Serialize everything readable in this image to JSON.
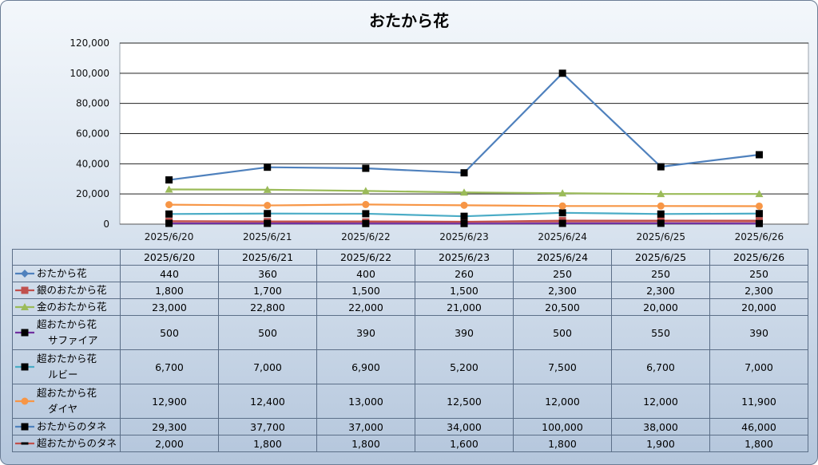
{
  "chart_data": {
    "type": "line",
    "title": "おたから花",
    "categories": [
      "2025/6/20",
      "2025/6/21",
      "2025/6/22",
      "2025/6/23",
      "2025/6/24",
      "2025/6/25",
      "2025/6/26"
    ],
    "y_ticks": [
      "0",
      "20,000",
      "40,000",
      "60,000",
      "80,000",
      "100,000",
      "120,000"
    ],
    "ylim": [
      0,
      120000
    ],
    "grid": true,
    "legend": "data table",
    "series": [
      {
        "name": "おたから花",
        "name_lines": [
          "おたから花"
        ],
        "color": "#4f81bd",
        "marker": "diamond",
        "marker_color": "#4f81bd",
        "plotted": false,
        "values": [
          440,
          360,
          400,
          260,
          250,
          250,
          250
        ],
        "labels": [
          "440",
          "360",
          "400",
          "260",
          "250",
          "250",
          "250"
        ]
      },
      {
        "name": "銀のおたから花",
        "name_lines": [
          "銀のおたから花"
        ],
        "color": "#c0504d",
        "marker": "square",
        "marker_color": "#c0504d",
        "plotted": true,
        "values": [
          1800,
          1700,
          1500,
          1500,
          2300,
          2300,
          2300
        ],
        "labels": [
          "1,800",
          "1,700",
          "1,500",
          "1,500",
          "2,300",
          "2,300",
          "2,300"
        ]
      },
      {
        "name": "金のおたから花",
        "name_lines": [
          "金のおたから花"
        ],
        "color": "#9bbb59",
        "marker": "triangle",
        "marker_color": "#9bbb59",
        "plotted": true,
        "values": [
          23000,
          22800,
          22000,
          21000,
          20500,
          20000,
          20000
        ],
        "labels": [
          "23,000",
          "22,800",
          "22,000",
          "21,000",
          "20,500",
          "20,000",
          "20,000"
        ]
      },
      {
        "name": "超おたから花 サファイア",
        "name_lines": [
          "超おたから花",
          "サファイア"
        ],
        "color": "#7030a0",
        "marker": "square",
        "marker_color": "#000000",
        "plotted": true,
        "values": [
          500,
          500,
          390,
          390,
          500,
          550,
          390
        ],
        "labels": [
          "500",
          "500",
          "390",
          "390",
          "500",
          "550",
          "390"
        ]
      },
      {
        "name": "超おたから花 ルビー",
        "name_lines": [
          "超おたから花",
          "ルビー"
        ],
        "color": "#4bacc6",
        "marker": "square",
        "marker_color": "#000000",
        "plotted": true,
        "values": [
          6700,
          7000,
          6900,
          5200,
          7500,
          6700,
          7000
        ],
        "labels": [
          "6,700",
          "7,000",
          "6,900",
          "5,200",
          "7,500",
          "6,700",
          "7,000"
        ]
      },
      {
        "name": "超おたから花 ダイヤ",
        "name_lines": [
          "超おたから花",
          "ダイヤ"
        ],
        "color": "#f79646",
        "marker": "circle",
        "marker_color": "#f79646",
        "plotted": true,
        "values": [
          12900,
          12400,
          13000,
          12500,
          12000,
          12000,
          11900
        ],
        "labels": [
          "12,900",
          "12,400",
          "13,000",
          "12,500",
          "12,000",
          "12,000",
          "11,900"
        ]
      },
      {
        "name": "おたからのタネ",
        "name_lines": [
          "おたからのタネ"
        ],
        "color": "#4f81bd",
        "marker": "square",
        "marker_color": "#000000",
        "plotted": true,
        "values": [
          29300,
          37700,
          37000,
          34000,
          100000,
          38000,
          46000
        ],
        "labels": [
          "29,300",
          "37,700",
          "37,000",
          "34,000",
          "100,000",
          "38,000",
          "46,000"
        ]
      },
      {
        "name": "超おたからのタネ",
        "name_lines": [
          "超おたからのタネ"
        ],
        "color": "#c0504d",
        "marker": "dash",
        "marker_color": "#000000",
        "plotted": true,
        "values": [
          2000,
          1800,
          1800,
          1600,
          1800,
          1900,
          1800
        ],
        "labels": [
          "2,000",
          "1,800",
          "1,800",
          "1,600",
          "1,800",
          "1,900",
          "1,800"
        ]
      }
    ]
  }
}
